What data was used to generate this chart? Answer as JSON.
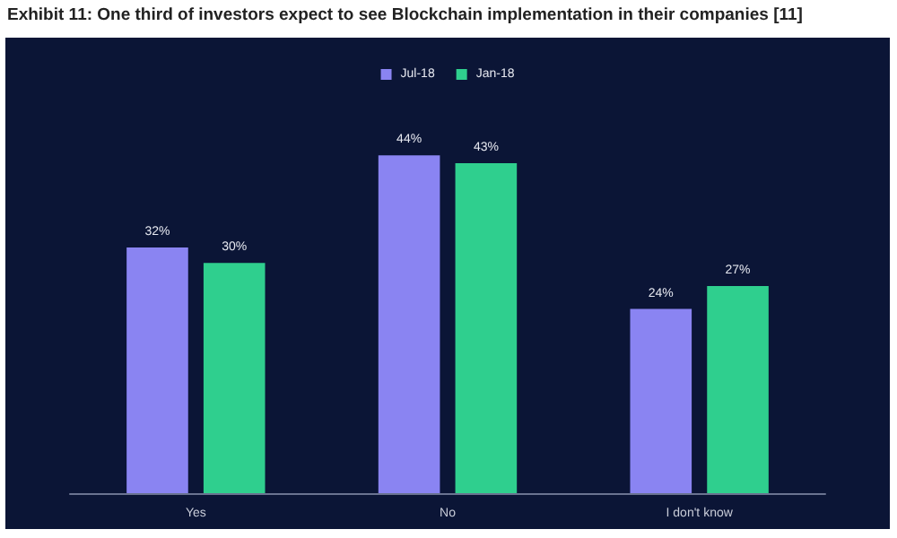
{
  "chart_data": {
    "type": "bar",
    "title": "Exhibit 11: One third of investors expect to see Blockchain implementation in their companies [11]",
    "categories": [
      "Yes",
      "No",
      "I don't know"
    ],
    "series": [
      {
        "name": "Jul-18",
        "color": "#8a84f2",
        "values": [
          32,
          44,
          24
        ],
        "value_labels": [
          "32%",
          "44%",
          "24%"
        ]
      },
      {
        "name": "Jan-18",
        "color": "#2fcf8e",
        "values": [
          30,
          43,
          27
        ],
        "value_labels": [
          "30%",
          "43%",
          "27%"
        ]
      }
    ],
    "legend": "top",
    "grid": false
  }
}
